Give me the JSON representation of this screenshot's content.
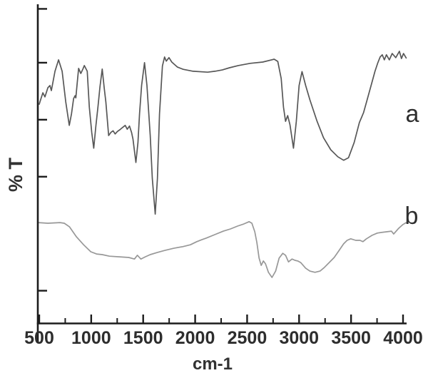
{
  "figure": {
    "background_color": "#ffffff",
    "axis_color": "#1c1c1c",
    "text_color": "#2d2d2d"
  },
  "chart_data": {
    "type": "line",
    "title": "",
    "xlabel": "cm-1",
    "ylabel": "% T",
    "grid": false,
    "legend_position": "inline letters at right ends of curves",
    "x_axis": {
      "min": 500,
      "max": 4000,
      "major_ticks": [
        500,
        1000,
        1500,
        2000,
        2500,
        3000,
        3500,
        4000
      ],
      "minor_ticks": [
        750,
        1250,
        1750,
        2250,
        2750,
        3250,
        3750
      ],
      "tick_labels": [
        "500",
        "1000",
        "1500",
        "2000",
        "2500",
        "3000",
        "3500",
        "4000"
      ]
    },
    "y_axis": {
      "range": [
        0,
        100
      ],
      "unit": "arbitrary transmittance (axis unlabeled)",
      "tick_positions": [
        99,
        82,
        64,
        46,
        10
      ]
    },
    "series": [
      {
        "name": "a",
        "color": "#575757",
        "points": [
          [
            500,
            68.9
          ],
          [
            515,
            70.5
          ],
          [
            535,
            72.5
          ],
          [
            555,
            71.2
          ],
          [
            583,
            74.1
          ],
          [
            603,
            74.8
          ],
          [
            617,
            73.2
          ],
          [
            652,
            79.3
          ],
          [
            686,
            82.9
          ],
          [
            720,
            79.3
          ],
          [
            755,
            69.6
          ],
          [
            789,
            62.2
          ],
          [
            810,
            65.8
          ],
          [
            831,
            70.7
          ],
          [
            845,
            71.6
          ],
          [
            852,
            70.9
          ],
          [
            865,
            75.5
          ],
          [
            879,
            80.2
          ],
          [
            900,
            78.6
          ],
          [
            920,
            80.0
          ],
          [
            934,
            81.1
          ],
          [
            962,
            79.3
          ],
          [
            982,
            68.0
          ],
          [
            1005,
            60.0
          ],
          [
            1024,
            55.0
          ],
          [
            1045,
            62.0
          ],
          [
            1065,
            68.0
          ],
          [
            1085,
            74.5
          ],
          [
            1106,
            80.0
          ],
          [
            1125,
            74.0
          ],
          [
            1141,
            69.6
          ],
          [
            1168,
            59.0
          ],
          [
            1190,
            60.0
          ],
          [
            1210,
            60.5
          ],
          [
            1230,
            59.5
          ],
          [
            1252,
            60.3
          ],
          [
            1275,
            60.8
          ],
          [
            1300,
            61.5
          ],
          [
            1327,
            62.2
          ],
          [
            1347,
            61.0
          ],
          [
            1368,
            62.0
          ],
          [
            1388,
            60.0
          ],
          [
            1402,
            57.9
          ],
          [
            1430,
            50.5
          ],
          [
            1450,
            56.8
          ],
          [
            1465,
            65.8
          ],
          [
            1485,
            74.8
          ],
          [
            1513,
            82.0
          ],
          [
            1536,
            74.8
          ],
          [
            1568,
            59.0
          ],
          [
            1588,
            45.5
          ],
          [
            1616,
            34.2
          ],
          [
            1637,
            45.5
          ],
          [
            1657,
            65.8
          ],
          [
            1685,
            81.0
          ],
          [
            1706,
            83.8
          ],
          [
            1722,
            82.5
          ],
          [
            1748,
            83.6
          ],
          [
            1775,
            82.2
          ],
          [
            1830,
            80.6
          ],
          [
            1885,
            79.9
          ],
          [
            1980,
            79.3
          ],
          [
            2120,
            79.0
          ],
          [
            2190,
            79.3
          ],
          [
            2260,
            79.7
          ],
          [
            2330,
            80.4
          ],
          [
            2415,
            81.1
          ],
          [
            2530,
            81.8
          ],
          [
            2650,
            82.2
          ],
          [
            2760,
            83.1
          ],
          [
            2795,
            82.4
          ],
          [
            2828,
            77.0
          ],
          [
            2850,
            68.0
          ],
          [
            2870,
            63.5
          ],
          [
            2890,
            65.3
          ],
          [
            2912,
            62.4
          ],
          [
            2946,
            55.0
          ],
          [
            2973,
            63.5
          ],
          [
            3000,
            74.8
          ],
          [
            3028,
            79.2
          ],
          [
            3063,
            74.8
          ],
          [
            3104,
            70.3
          ],
          [
            3173,
            63.5
          ],
          [
            3235,
            58.3
          ],
          [
            3305,
            54.5
          ],
          [
            3373,
            52.3
          ],
          [
            3428,
            51.2
          ],
          [
            3476,
            52.0
          ],
          [
            3530,
            56.8
          ],
          [
            3580,
            63.1
          ],
          [
            3620,
            66.2
          ],
          [
            3655,
            70.3
          ],
          [
            3696,
            75.2
          ],
          [
            3730,
            79.3
          ],
          [
            3758,
            82.0
          ],
          [
            3780,
            83.8
          ],
          [
            3800,
            84.5
          ],
          [
            3820,
            82.9
          ],
          [
            3840,
            84.5
          ],
          [
            3868,
            82.9
          ],
          [
            3896,
            84.9
          ],
          [
            3930,
            83.6
          ],
          [
            3965,
            85.6
          ],
          [
            3985,
            83.3
          ],
          [
            4005,
            84.9
          ],
          [
            4030,
            83.5
          ]
        ]
      },
      {
        "name": "b",
        "color": "#989898",
        "points": [
          [
            490,
            31.5
          ],
          [
            583,
            31.3
          ],
          [
            700,
            31.5
          ],
          [
            741,
            31.3
          ],
          [
            790,
            30.2
          ],
          [
            858,
            27.0
          ],
          [
            927,
            24.5
          ],
          [
            996,
            22.3
          ],
          [
            1051,
            21.6
          ],
          [
            1106,
            21.4
          ],
          [
            1175,
            20.9
          ],
          [
            1272,
            20.7
          ],
          [
            1361,
            20.5
          ],
          [
            1416,
            20.0
          ],
          [
            1444,
            21.2
          ],
          [
            1478,
            20.0
          ],
          [
            1520,
            20.7
          ],
          [
            1568,
            21.4
          ],
          [
            1637,
            22.1
          ],
          [
            1706,
            22.7
          ],
          [
            1795,
            23.4
          ],
          [
            1878,
            23.9
          ],
          [
            1954,
            24.5
          ],
          [
            2016,
            25.5
          ],
          [
            2064,
            26.1
          ],
          [
            2105,
            26.6
          ],
          [
            2188,
            27.7
          ],
          [
            2271,
            28.8
          ],
          [
            2340,
            29.5
          ],
          [
            2408,
            30.4
          ],
          [
            2470,
            31.1
          ],
          [
            2519,
            31.8
          ],
          [
            2546,
            31.3
          ],
          [
            2574,
            28.6
          ],
          [
            2594,
            25.2
          ],
          [
            2615,
            20.3
          ],
          [
            2636,
            18.0
          ],
          [
            2656,
            19.4
          ],
          [
            2677,
            18.5
          ],
          [
            2705,
            15.8
          ],
          [
            2739,
            14.2
          ],
          [
            2774,
            16.2
          ],
          [
            2808,
            20.3
          ],
          [
            2843,
            21.8
          ],
          [
            2870,
            21.2
          ],
          [
            2898,
            19.1
          ],
          [
            2932,
            20.0
          ],
          [
            2960,
            19.6
          ],
          [
            2987,
            19.4
          ],
          [
            3015,
            18.9
          ],
          [
            3063,
            17.1
          ],
          [
            3104,
            16.2
          ],
          [
            3153,
            15.8
          ],
          [
            3201,
            16.2
          ],
          [
            3242,
            17.3
          ],
          [
            3290,
            18.9
          ],
          [
            3338,
            20.5
          ],
          [
            3380,
            22.5
          ],
          [
            3428,
            24.8
          ],
          [
            3462,
            25.9
          ],
          [
            3497,
            26.4
          ],
          [
            3545,
            25.9
          ],
          [
            3586,
            25.9
          ],
          [
            3614,
            25.5
          ],
          [
            3648,
            26.4
          ],
          [
            3703,
            27.5
          ],
          [
            3752,
            28.2
          ],
          [
            3793,
            28.4
          ],
          [
            3841,
            28.6
          ],
          [
            3889,
            28.8
          ],
          [
            3910,
            27.9
          ],
          [
            3958,
            29.7
          ],
          [
            3999,
            30.9
          ],
          [
            4030,
            31.5
          ]
        ]
      }
    ],
    "series_labels": {
      "a": {
        "text": "a",
        "x": 4089,
        "y": 66.0
      },
      "b": {
        "text": "b",
        "x": 4082,
        "y": 33.8
      }
    }
  }
}
